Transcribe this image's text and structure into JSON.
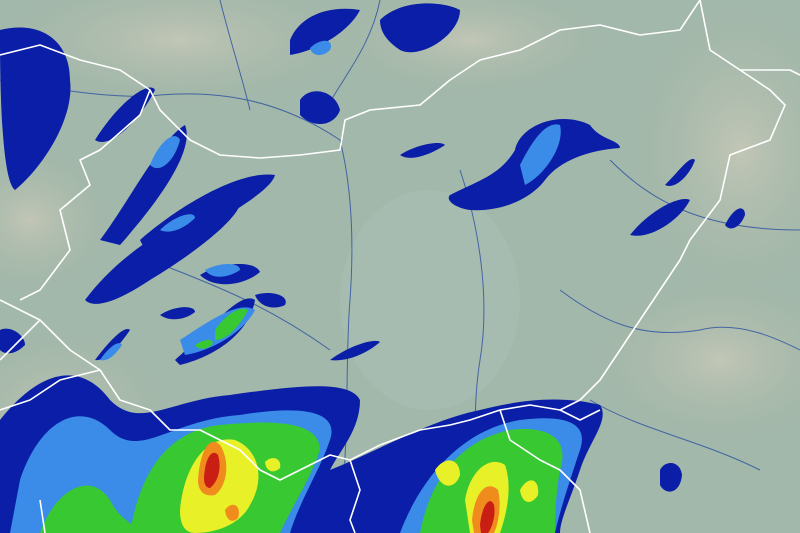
{
  "map": {
    "type": "precipitation-radar-overlay",
    "colors": {
      "terrain_lowland": "#9fb7a9",
      "terrain_hills": "#b4bcae",
      "border": "#ffffff",
      "river": "#2a4fa0",
      "precip_level_1": "#0a1ea8",
      "precip_level_2": "#3a8ce8",
      "precip_level_3": "#38c832",
      "precip_level_4": "#e8f028",
      "precip_level_5": "#f08c1e",
      "precip_level_6": "#c81e14"
    }
  }
}
